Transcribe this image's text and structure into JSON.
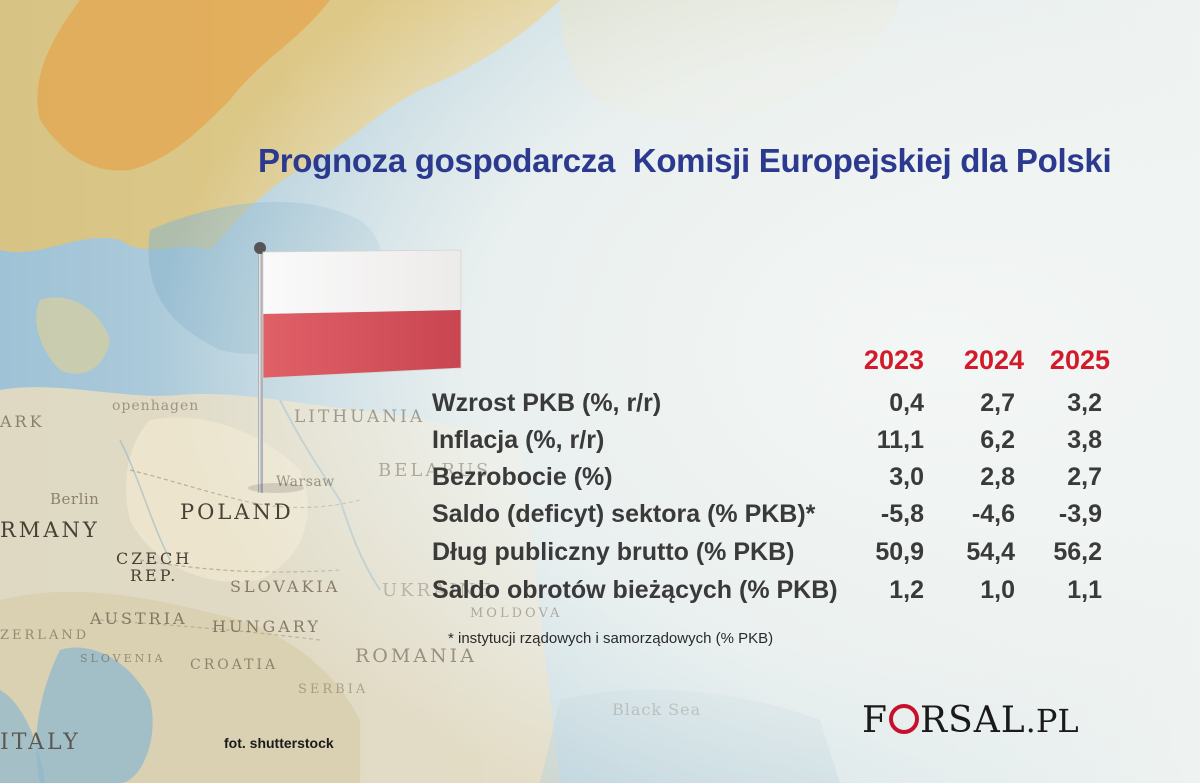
{
  "title": "Prognoza gospodarcza  Komisji Europejskiej dla Polski",
  "years": [
    "2023",
    "2024",
    "2025"
  ],
  "rows": [
    {
      "label": "Wzrost PKB (%, r/r)",
      "values": [
        "0,4",
        "2,7",
        "3,2"
      ]
    },
    {
      "label": "Inflacja (%, r/r)",
      "values": [
        "11,1",
        "6,2",
        "3,8"
      ]
    },
    {
      "label": "Bezrobocie (%)",
      "values": [
        "3,0",
        "2,8",
        "2,7"
      ]
    },
    {
      "label": "Saldo (deficyt) sektora (% PKB)*",
      "values": [
        "-5,8",
        "-4,6",
        "-3,9"
      ]
    },
    {
      "label": "Dług publiczny brutto (% PKB)",
      "values": [
        "50,9",
        "54,4",
        "56,2"
      ]
    },
    {
      "label": "Saldo obrotów bieżących (% PKB)",
      "values": [
        "1,2",
        "1,0",
        "1,1"
      ]
    }
  ],
  "footnote": "* instytucji rządowych i samorządowych (% PKB)",
  "credit": "fot. shutterstock",
  "logo": {
    "main_left": "F",
    "main_right": "RSAL",
    "suffix": ".PL"
  },
  "map_labels": {
    "poland": "POLAND",
    "germany": "RMANY",
    "czech_1": "CZECH",
    "czech_2": "REP.",
    "slovakia": "SLOVAKIA",
    "austria": "AUSTRIA",
    "hungary": "HUNGARY",
    "romania": "ROMANIA",
    "croatia": "CROATIA",
    "serbia": "SERBIA",
    "slovenia": "SLOVENIA",
    "italy": "ITALY",
    "lithuania": "LITHUANIA",
    "belarus": "BELARUS",
    "ukraine": "UKRAINE",
    "moldova": "MOLDOVA",
    "berlin": "Berlin",
    "warsaw": "Warsaw",
    "copenhagen": "openhagen",
    "denmark": "ARK",
    "zerland": "ZERLAND",
    "black_sea": "Black Sea"
  },
  "colors": {
    "title": "#2b3a8f",
    "years": "#d11a2a",
    "text": "#3a3a3a",
    "flag_white": "#f5f3f2",
    "flag_red": "#d8505a",
    "logo_accent": "#c8102e"
  }
}
